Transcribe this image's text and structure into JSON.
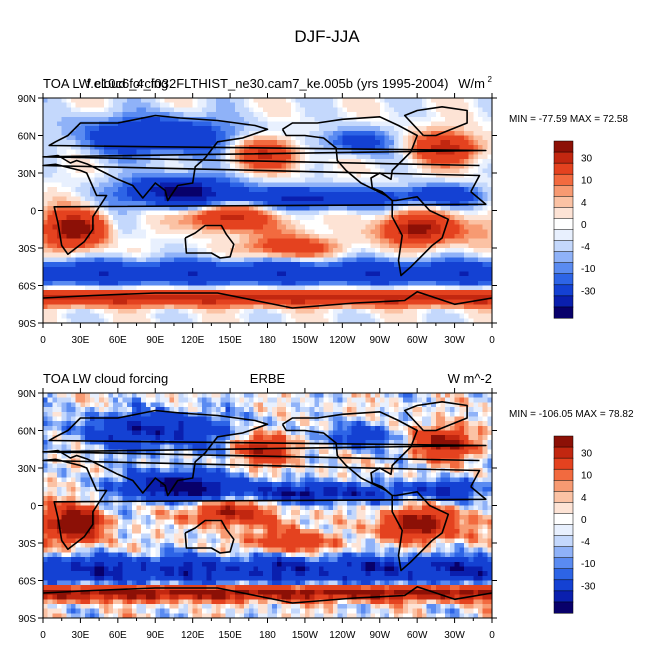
{
  "page_title": "DJF-JJA",
  "colors": {
    "scale": [
      "#08006a",
      "#0a1fae",
      "#1441d3",
      "#2d64e6",
      "#5a8bf1",
      "#8fb2f8",
      "#c4d8fc",
      "#e8f0fe",
      "#ffffff",
      "#fde3d5",
      "#fbc2a4",
      "#f79a72",
      "#f26a3f",
      "#e4421f",
      "#c22710",
      "#8c1006"
    ],
    "land_outline": "#000000"
  },
  "chart_data": [
    {
      "type": "heatmap",
      "title_left": "TOA LW cloud forcing",
      "title_center": "f.e10c6_4_f032FLTHIST_ne30.cam7_ke.005b (yrs 1995-2004)",
      "title_right": "W/m",
      "title_right_sup": "2",
      "min_max_label": "MIN = -77.59 MAX =  72.58",
      "min": -77.59,
      "max": 72.58,
      "x_ticks": [
        "0",
        "30E",
        "60E",
        "90E",
        "120E",
        "150E",
        "180",
        "150W",
        "120W",
        "90W",
        "60W",
        "30W",
        "0"
      ],
      "y_ticks": [
        "90N",
        "60N",
        "30N",
        "0",
        "30S",
        "60S",
        "90S"
      ],
      "colorbar_ticks": [
        "30",
        "10",
        "4",
        "0",
        "-4",
        "-10",
        "-30"
      ],
      "colorbar_levels": [
        -50,
        -40,
        -30,
        -20,
        -15,
        -10,
        -6,
        -4,
        -2,
        0,
        2,
        4,
        6,
        10,
        15,
        20,
        30,
        40,
        50
      ]
    },
    {
      "type": "heatmap",
      "title_left": "TOA LW cloud forcing",
      "title_center": "ERBE",
      "title_right": "W m^-2",
      "title_right_sup": "",
      "min_max_label": "MIN = -106.05 MAX =  78.82",
      "min": -106.05,
      "max": 78.82,
      "x_ticks": [
        "0",
        "30E",
        "60E",
        "90E",
        "120E",
        "150E",
        "180",
        "150W",
        "120W",
        "90W",
        "60W",
        "30W",
        "0"
      ],
      "y_ticks": [
        "90N",
        "60N",
        "30N",
        "0",
        "30S",
        "60S",
        "90S"
      ],
      "colorbar_ticks": [
        "30",
        "10",
        "4",
        "0",
        "-4",
        "-10",
        "-30"
      ],
      "colorbar_levels": [
        -50,
        -40,
        -30,
        -20,
        -15,
        -10,
        -6,
        -4,
        -2,
        0,
        2,
        4,
        6,
        10,
        15,
        20,
        30,
        40,
        50
      ]
    }
  ]
}
